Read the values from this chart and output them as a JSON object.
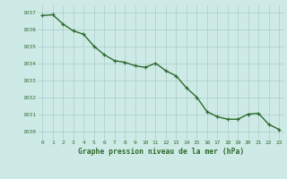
{
  "hours": [
    0,
    1,
    2,
    3,
    4,
    5,
    6,
    7,
    8,
    9,
    10,
    11,
    12,
    13,
    14,
    15,
    16,
    17,
    18,
    19,
    20,
    21,
    22,
    23
  ],
  "pressure": [
    1036.8,
    1036.85,
    1036.3,
    1035.9,
    1035.7,
    1035.0,
    1034.5,
    1034.15,
    1034.05,
    1033.85,
    1033.75,
    1034.0,
    1033.55,
    1033.25,
    1032.55,
    1032.0,
    1031.15,
    1030.85,
    1030.7,
    1030.7,
    1031.0,
    1031.05,
    1030.4,
    1030.1
  ],
  "line_color": "#2d6a2d",
  "marker_color": "#2d6a2d",
  "bg_color": "#ceeae6",
  "grid_color": "#a8ccc8",
  "xlabel": "Graphe pression niveau de la mer (hPa)",
  "xlabel_color": "#2d6a2d",
  "tick_label_color": "#2d6a2d",
  "ylim": [
    1029.5,
    1037.4
  ],
  "yticks": [
    1030,
    1031,
    1032,
    1033,
    1034,
    1035,
    1036,
    1037
  ],
  "xticks": [
    0,
    1,
    2,
    3,
    4,
    5,
    6,
    7,
    8,
    9,
    10,
    11,
    12,
    13,
    14,
    15,
    16,
    17,
    18,
    19,
    20,
    21,
    22,
    23
  ],
  "marker_size": 3.0,
  "line_width": 1.0
}
